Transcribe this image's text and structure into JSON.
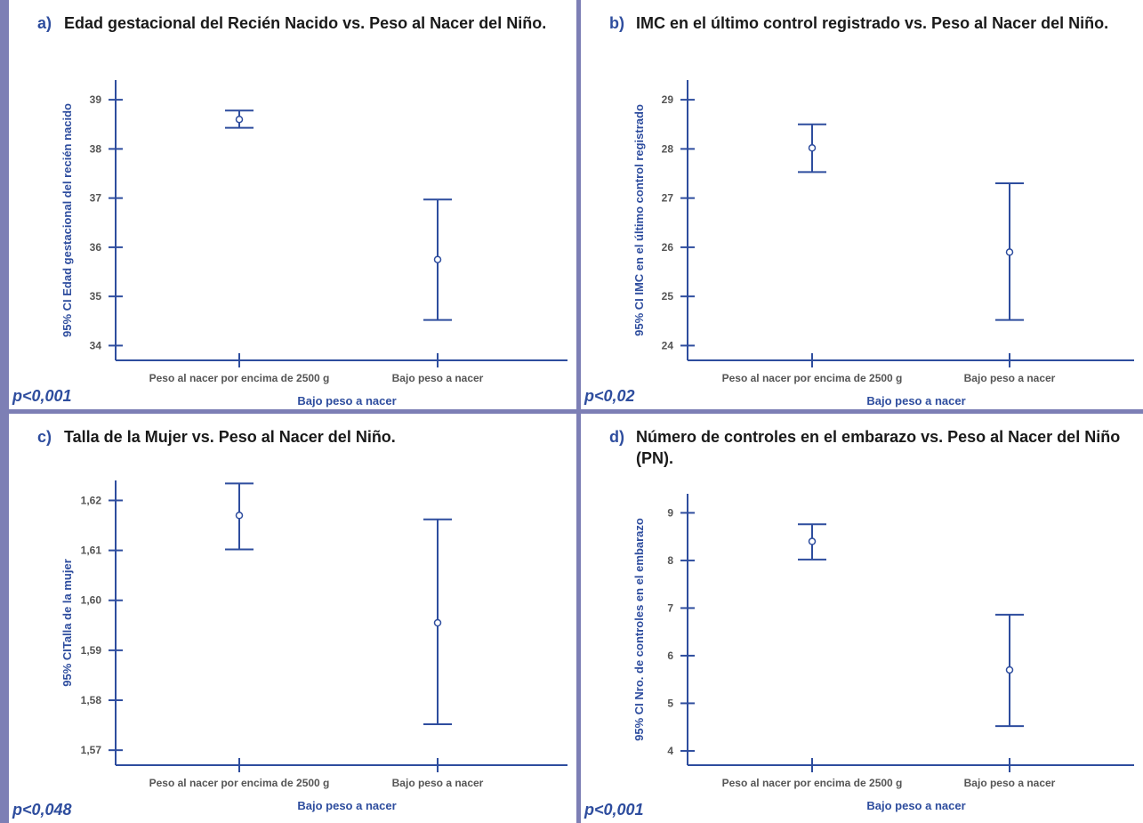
{
  "colors": {
    "axis": "#2e4d9e",
    "label": "#2e4d9e",
    "tick_text": "#555555",
    "title": "#1a1a1a",
    "border": "#7d7fb5"
  },
  "panels": [
    {
      "letter": "a)",
      "title": "Edad gestacional del Recién Nacido vs. Peso al Nacer del Niño.",
      "pvalue": "p<0,001"
    },
    {
      "letter": "b)",
      "title": "IMC en el último control registrado vs. Peso al Nacer del Niño.",
      "pvalue": "p<0,02"
    },
    {
      "letter": "c)",
      "title": "Talla de la Mujer vs. Peso al Nacer del Niño.",
      "pvalue": "p<0,048"
    },
    {
      "letter": "d)",
      "title": "Número de controles en el embarazo vs. Peso al Nacer del Niño (PN).",
      "pvalue": "p<0,001"
    }
  ],
  "chart_data": [
    {
      "type": "errorbar",
      "categories": [
        "Peso al nacer por encima de 2500 g",
        "Bajo peso a nacer"
      ],
      "mean": [
        38.6,
        35.75
      ],
      "lower": [
        38.43,
        34.52
      ],
      "upper": [
        38.78,
        36.97
      ],
      "ylabel": "95% CI Edad gestacional del recién nacido",
      "xlabel": "Bajo peso a nacer",
      "yticks": [
        "34",
        "35",
        "36",
        "37",
        "38",
        "39"
      ],
      "ytick_values": [
        34,
        35,
        36,
        37,
        38,
        39
      ],
      "ylim": [
        33.7,
        39.4
      ]
    },
    {
      "type": "errorbar",
      "categories": [
        "Peso al nacer por encima de 2500 g",
        "Bajo peso a nacer"
      ],
      "mean": [
        28.02,
        25.9
      ],
      "lower": [
        27.53,
        24.52
      ],
      "upper": [
        28.5,
        27.3
      ],
      "ylabel": "95% CI IMC en el último control registrado",
      "xlabel": "Bajo peso a nacer",
      "yticks": [
        "24",
        "25",
        "26",
        "27",
        "28",
        "29"
      ],
      "ytick_values": [
        24,
        25,
        26,
        27,
        28,
        29
      ],
      "ylim": [
        23.7,
        29.4
      ]
    },
    {
      "type": "errorbar",
      "categories": [
        "Peso al nacer por encima de 2500 g",
        "Bajo peso a nacer"
      ],
      "mean": [
        1.617,
        1.5955
      ],
      "lower": [
        1.6102,
        1.5752
      ],
      "upper": [
        1.6234,
        1.6162
      ],
      "ylabel": "95% CITalla de la mujer",
      "xlabel": "Bajo peso a nacer",
      "yticks": [
        "1,57",
        "1,58",
        "1,59",
        "1,60",
        "1,61",
        "1,62"
      ],
      "ytick_values": [
        1.57,
        1.58,
        1.59,
        1.6,
        1.61,
        1.62
      ],
      "ylim": [
        1.567,
        1.624
      ]
    },
    {
      "type": "errorbar",
      "categories": [
        "Peso al nacer por encima de 2500 g",
        "Bajo peso a nacer"
      ],
      "mean": [
        8.4,
        5.7
      ],
      "lower": [
        8.02,
        4.52
      ],
      "upper": [
        8.76,
        6.86
      ],
      "ylabel": "95% CI Nro. de controles en el embarazo",
      "xlabel": "Bajo peso a nacer",
      "yticks": [
        "4",
        "5",
        "6",
        "7",
        "8",
        "9"
      ],
      "ytick_values": [
        4,
        5,
        6,
        7,
        8,
        9
      ],
      "ylim": [
        3.7,
        9.4
      ]
    }
  ]
}
